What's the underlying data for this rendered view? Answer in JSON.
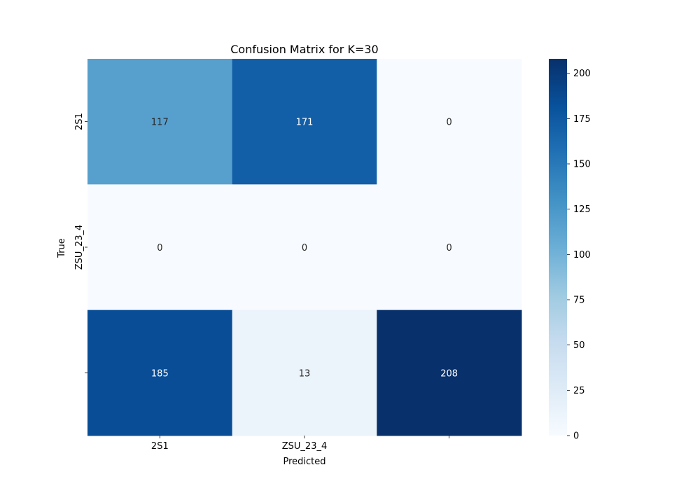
{
  "chart_data": {
    "type": "heatmap",
    "title": "Confusion Matrix for K=30",
    "xlabel": "Predicted",
    "ylabel": "True",
    "x_tick_labels": [
      "2S1",
      "ZSU_23_4",
      ""
    ],
    "y_tick_labels": [
      "2S1",
      "ZSU_23_4",
      ""
    ],
    "matrix": [
      [
        117,
        171,
        0
      ],
      [
        0,
        0,
        0
      ],
      [
        185,
        13,
        208
      ]
    ],
    "colormap": "Blues",
    "vmin": 0,
    "vmax": 208,
    "colorbar_ticks": [
      0,
      25,
      50,
      75,
      100,
      125,
      150,
      175,
      200
    ]
  }
}
